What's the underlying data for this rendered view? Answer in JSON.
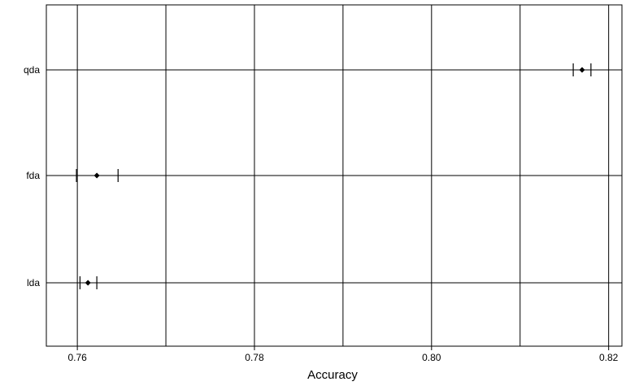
{
  "chart_data": {
    "type": "dotplot",
    "xlabel": "Accuracy",
    "xlim": [
      0.7565,
      0.8215
    ],
    "x_ticks": [
      0.76,
      0.78,
      0.8,
      0.82
    ],
    "x_tick_labels": [
      "0.76",
      "0.78",
      "0.80",
      "0.82"
    ],
    "x_grid_minor": [
      0.77,
      0.79,
      0.81
    ],
    "grid": true,
    "categories": [
      "lda",
      "fda",
      "qda"
    ],
    "points": [
      {
        "label": "lda",
        "estimate": 0.7612,
        "lower": 0.7603,
        "upper": 0.7622
      },
      {
        "label": "fda",
        "estimate": 0.7622,
        "lower": 0.7599,
        "upper": 0.7646
      },
      {
        "label": "qda",
        "estimate": 0.817,
        "lower": 0.816,
        "upper": 0.818
      }
    ]
  }
}
